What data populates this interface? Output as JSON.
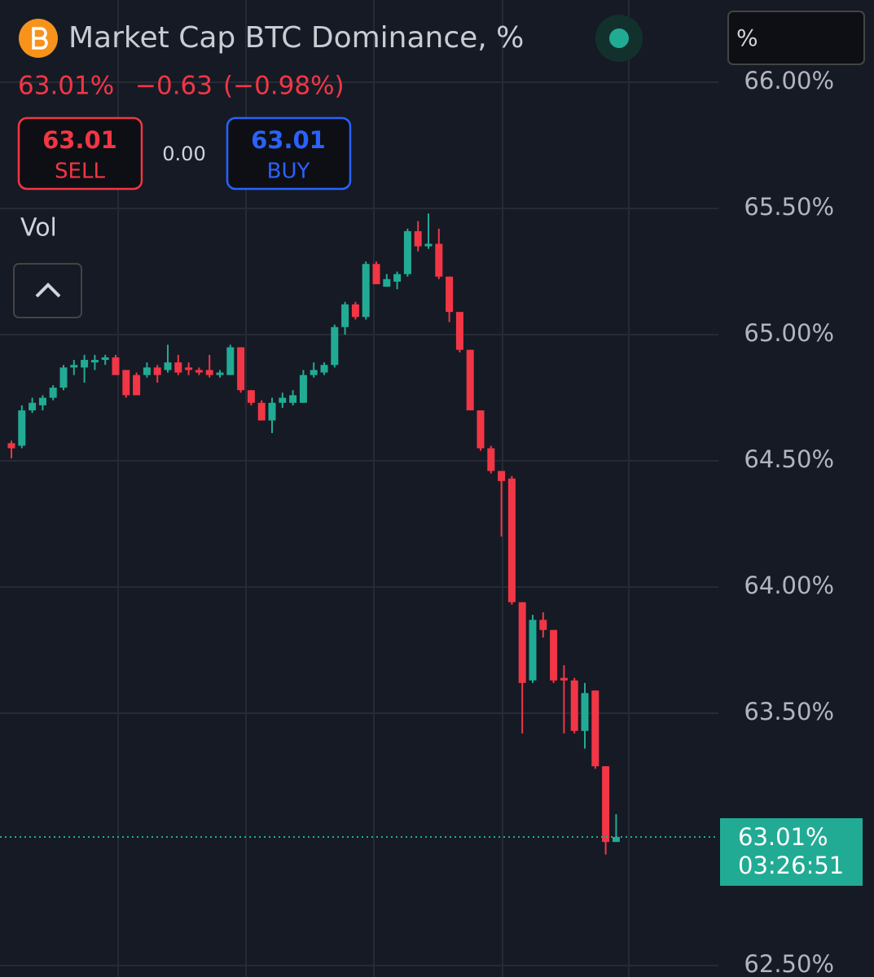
{
  "header": {
    "title": "Market Cap BTC Dominance, %",
    "price": "63.01%",
    "change": "−0.63",
    "change_pct": "(−0.98%)",
    "sell_price": "63.01",
    "sell_label": "SELL",
    "spread": "0.00",
    "buy_price": "63.01",
    "buy_label": "BUY",
    "vol": "Vol",
    "unit": "%"
  },
  "chart_data": {
    "type": "candlestick",
    "up_color": "#22ab94",
    "down_color": "#f23645",
    "grid": true,
    "ylim": [
      62.455,
      66.326
    ],
    "yticks": [
      {
        "value": 66,
        "label": "66.00%"
      },
      {
        "value": 65.5,
        "label": "65.50%"
      },
      {
        "value": 65,
        "label": "65.00%"
      },
      {
        "value": 64.5,
        "label": "64.50%"
      },
      {
        "value": 64,
        "label": "64.00%"
      },
      {
        "value": 63.5,
        "label": "63.50%"
      },
      {
        "value": 62.5,
        "label": "62.50%"
      }
    ],
    "last_price": {
      "value": 63.01,
      "label": "63.01%"
    },
    "countdown": "03:26:51",
    "open": [
      64.57,
      64.56,
      64.7,
      64.72,
      64.75,
      64.79,
      64.87,
      64.87,
      64.89,
      64.9,
      64.91,
      64.86,
      64.84,
      64.84,
      64.87,
      64.86,
      64.89,
      64.87,
      64.86,
      64.86,
      64.84,
      64.84,
      64.95,
      64.78,
      64.73,
      64.66,
      64.73,
      64.73,
      64.73,
      64.84,
      64.85,
      64.88,
      65.03,
      65.12,
      65.07,
      65.28,
      65.19,
      65.21,
      65.24,
      65.41,
      65.35,
      65.36,
      65.23,
      65.09,
      64.94,
      64.7,
      64.55,
      64.46,
      64.43,
      63.94,
      63.63,
      63.87,
      63.83,
      63.64,
      63.63,
      63.43,
      63.59,
      63.29,
      62.99
    ],
    "high": [
      64.58,
      64.72,
      64.75,
      64.76,
      64.8,
      64.88,
      64.9,
      64.92,
      64.92,
      64.92,
      64.92,
      64.86,
      64.85,
      64.89,
      64.88,
      64.96,
      64.92,
      64.89,
      64.87,
      64.92,
      64.86,
      64.96,
      64.95,
      64.78,
      64.74,
      64.75,
      64.77,
      64.78,
      64.86,
      64.89,
      64.89,
      65.04,
      65.13,
      65.13,
      65.29,
      65.29,
      65.24,
      65.25,
      65.42,
      65.45,
      65.48,
      65.42,
      65.23,
      65.09,
      64.94,
      64.7,
      64.56,
      64.46,
      64.44,
      63.94,
      63.89,
      63.9,
      63.83,
      63.69,
      63.64,
      63.62,
      63.59,
      63.29,
      63.1
    ],
    "low": [
      64.51,
      64.55,
      64.69,
      64.7,
      64.74,
      64.78,
      64.84,
      64.81,
      64.86,
      64.88,
      64.84,
      64.75,
      64.76,
      64.83,
      64.81,
      64.85,
      64.84,
      64.84,
      64.84,
      64.83,
      64.83,
      64.84,
      64.77,
      64.72,
      64.66,
      64.61,
      64.71,
      64.72,
      64.73,
      64.83,
      64.84,
      64.87,
      65.0,
      65.06,
      65.06,
      65.2,
      65.19,
      65.18,
      65.23,
      65.33,
      65.34,
      65.22,
      65.05,
      64.93,
      64.7,
      64.54,
      64.45,
      64.2,
      63.93,
      63.42,
      63.62,
      63.8,
      63.62,
      63.42,
      63.42,
      63.36,
      63.28,
      62.94,
      62.99
    ],
    "close": [
      64.55,
      64.7,
      64.73,
      64.75,
      64.79,
      64.87,
      64.88,
      64.9,
      64.9,
      64.91,
      64.84,
      64.76,
      64.76,
      64.87,
      64.84,
      64.89,
      64.85,
      64.86,
      64.85,
      64.84,
      64.85,
      64.95,
      64.78,
      64.73,
      64.66,
      64.73,
      64.75,
      64.76,
      64.84,
      64.86,
      64.88,
      65.03,
      65.12,
      65.07,
      65.28,
      65.2,
      65.22,
      65.24,
      65.41,
      65.35,
      65.36,
      65.23,
      65.09,
      64.94,
      64.7,
      64.55,
      64.46,
      64.42,
      63.94,
      63.62,
      63.87,
      63.83,
      63.63,
      63.63,
      63.43,
      63.58,
      63.29,
      62.99,
      63.01
    ]
  }
}
